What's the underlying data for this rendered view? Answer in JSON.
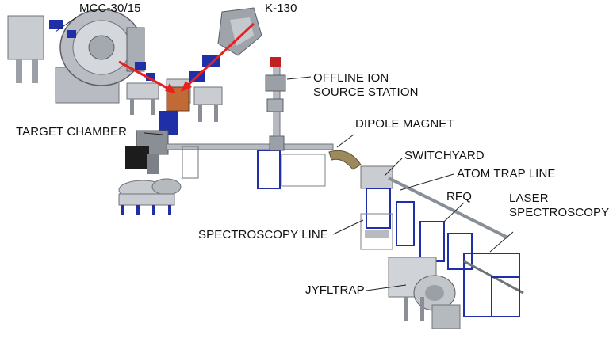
{
  "labels": {
    "mcc": "MCC-30/15",
    "k130": "K-130",
    "offline": "OFFLINE ION\nSOURCE STATION",
    "target_chamber": "TARGET CHAMBER",
    "dipole": "DIPOLE MAGNET",
    "switchyard": "SWITCHYARD",
    "atom_trap": "ATOM TRAP LINE",
    "rfq": "RFQ",
    "laser": "LASER\nSPECTROSCOPY",
    "spectroscopy_line": "SPECTROSCOPY LINE",
    "jyfltrap": "JYFLTRAP"
  },
  "colors": {
    "beam_arrow": "#e8201e",
    "frame_blue": "#1f2fa8",
    "steel": "#8a8f96",
    "dipole": "#9c8a5c",
    "dark": "#2a2a2a"
  }
}
